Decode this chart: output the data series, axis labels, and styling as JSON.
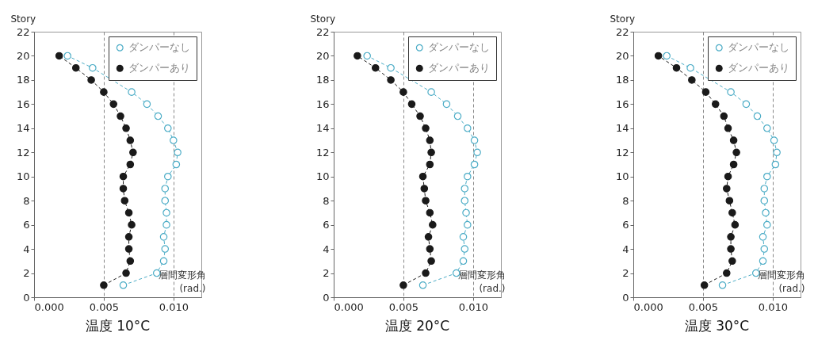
{
  "chart_data": [
    {
      "type": "line",
      "title": "温度 10°C",
      "xlabel": "層間変形角 (rad.)",
      "ylabel": "Story",
      "xlim": [
        0,
        0.012
      ],
      "xticks": [
        {
          "value": 0,
          "label": "0.000"
        },
        {
          "value": 0.005,
          "label": "0.005"
        },
        {
          "value": 0.01,
          "label": "0.010"
        }
      ],
      "ylim": [
        0,
        22
      ],
      "yticks": [
        0,
        2,
        4,
        6,
        8,
        10,
        12,
        14,
        16,
        18,
        20,
        22
      ],
      "grid": "x",
      "legend": "top right",
      "marker": "circle",
      "line_style": "dashed",
      "series": [
        {
          "name": "ダンパーなし",
          "color": "#4bacc6",
          "x": [
            0.0064,
            0.0088,
            0.0093,
            0.0094,
            0.0093,
            0.0095,
            0.0095,
            0.0094,
            0.0094,
            0.0096,
            0.0102,
            0.0103,
            0.01,
            0.0096,
            0.0089,
            0.0081,
            0.007,
            0.0042,
            0.0024
          ],
          "values": [
            1,
            2,
            3,
            4,
            5,
            6,
            7,
            8,
            9,
            10,
            11,
            12,
            13,
            14,
            15,
            16,
            17,
            19,
            20
          ]
        },
        {
          "name": "ダンパーあり",
          "color": "#1a1a1a",
          "x": [
            0.005,
            0.0066,
            0.0069,
            0.0068,
            0.0068,
            0.007,
            0.0068,
            0.0065,
            0.0064,
            0.0064,
            0.0069,
            0.0071,
            0.0069,
            0.0066,
            0.0062,
            0.0057,
            0.005,
            0.0041,
            0.003,
            0.0018
          ],
          "values": [
            1,
            2,
            3,
            4,
            5,
            6,
            7,
            8,
            9,
            10,
            11,
            12,
            13,
            14,
            15,
            16,
            17,
            18,
            19,
            20
          ]
        }
      ]
    },
    {
      "type": "line",
      "title": "温度 20°C",
      "xlabel": "層間変形角 (rad.)",
      "ylabel": "Story",
      "xlim": [
        0,
        0.012
      ],
      "xticks": [
        {
          "value": 0,
          "label": "0.000"
        },
        {
          "value": 0.005,
          "label": "0.005"
        },
        {
          "value": 0.01,
          "label": "0.010"
        }
      ],
      "ylim": [
        0,
        22
      ],
      "yticks": [
        0,
        2,
        4,
        6,
        8,
        10,
        12,
        14,
        16,
        18,
        20,
        22
      ],
      "grid": "x",
      "legend": "top right",
      "marker": "circle",
      "line_style": "dashed",
      "series": [
        {
          "name": "ダンパーなし",
          "color": "#4bacc6",
          "x": [
            0.0064,
            0.0088,
            0.0093,
            0.0094,
            0.0093,
            0.0096,
            0.0095,
            0.0094,
            0.0094,
            0.0096,
            0.0101,
            0.0103,
            0.0101,
            0.0096,
            0.0089,
            0.0081,
            0.007,
            0.0041,
            0.0024
          ],
          "values": [
            1,
            2,
            3,
            4,
            5,
            6,
            7,
            8,
            9,
            10,
            11,
            12,
            13,
            14,
            15,
            16,
            17,
            19,
            20
          ]
        },
        {
          "name": "ダンパーあり",
          "color": "#1a1a1a",
          "x": [
            0.005,
            0.0066,
            0.007,
            0.0069,
            0.0068,
            0.0071,
            0.0069,
            0.0066,
            0.0065,
            0.0064,
            0.0069,
            0.007,
            0.0069,
            0.0066,
            0.0062,
            0.0056,
            0.005,
            0.0041,
            0.003,
            0.0017
          ],
          "values": [
            1,
            2,
            3,
            4,
            5,
            6,
            7,
            8,
            9,
            10,
            11,
            12,
            13,
            14,
            15,
            16,
            17,
            18,
            19,
            20
          ]
        }
      ]
    },
    {
      "type": "line",
      "title": "温度 30°C",
      "xlabel": "層間変形角 (rad.)",
      "ylabel": "Story",
      "xlim": [
        0,
        0.012
      ],
      "xticks": [
        {
          "value": 0,
          "label": "0.000"
        },
        {
          "value": 0.005,
          "label": "0.005"
        },
        {
          "value": 0.01,
          "label": "0.010"
        }
      ],
      "ylim": [
        0,
        22
      ],
      "yticks": [
        0,
        2,
        4,
        6,
        8,
        10,
        12,
        14,
        16,
        18,
        20,
        22
      ],
      "grid": "x",
      "legend": "top right",
      "marker": "circle",
      "line_style": "dashed",
      "series": [
        {
          "name": "ダンパーなし",
          "color": "#4bacc6",
          "x": [
            0.0064,
            0.0088,
            0.0093,
            0.0094,
            0.0093,
            0.0096,
            0.0095,
            0.0094,
            0.0094,
            0.0096,
            0.0102,
            0.0103,
            0.0101,
            0.0096,
            0.0089,
            0.0081,
            0.007,
            0.0041,
            0.0024
          ],
          "values": [
            1,
            2,
            3,
            4,
            5,
            6,
            7,
            8,
            9,
            10,
            11,
            12,
            13,
            14,
            15,
            16,
            17,
            19,
            20
          ]
        },
        {
          "name": "ダンパーあり",
          "color": "#1a1a1a",
          "x": [
            0.0051,
            0.0067,
            0.0071,
            0.007,
            0.007,
            0.0073,
            0.0071,
            0.0069,
            0.0067,
            0.0068,
            0.0072,
            0.0074,
            0.0072,
            0.0068,
            0.0065,
            0.0059,
            0.0052,
            0.0042,
            0.0031,
            0.0018
          ],
          "values": [
            1,
            2,
            3,
            4,
            5,
            6,
            7,
            8,
            9,
            10,
            11,
            12,
            13,
            14,
            15,
            16,
            17,
            18,
            19,
            20
          ]
        }
      ]
    }
  ]
}
